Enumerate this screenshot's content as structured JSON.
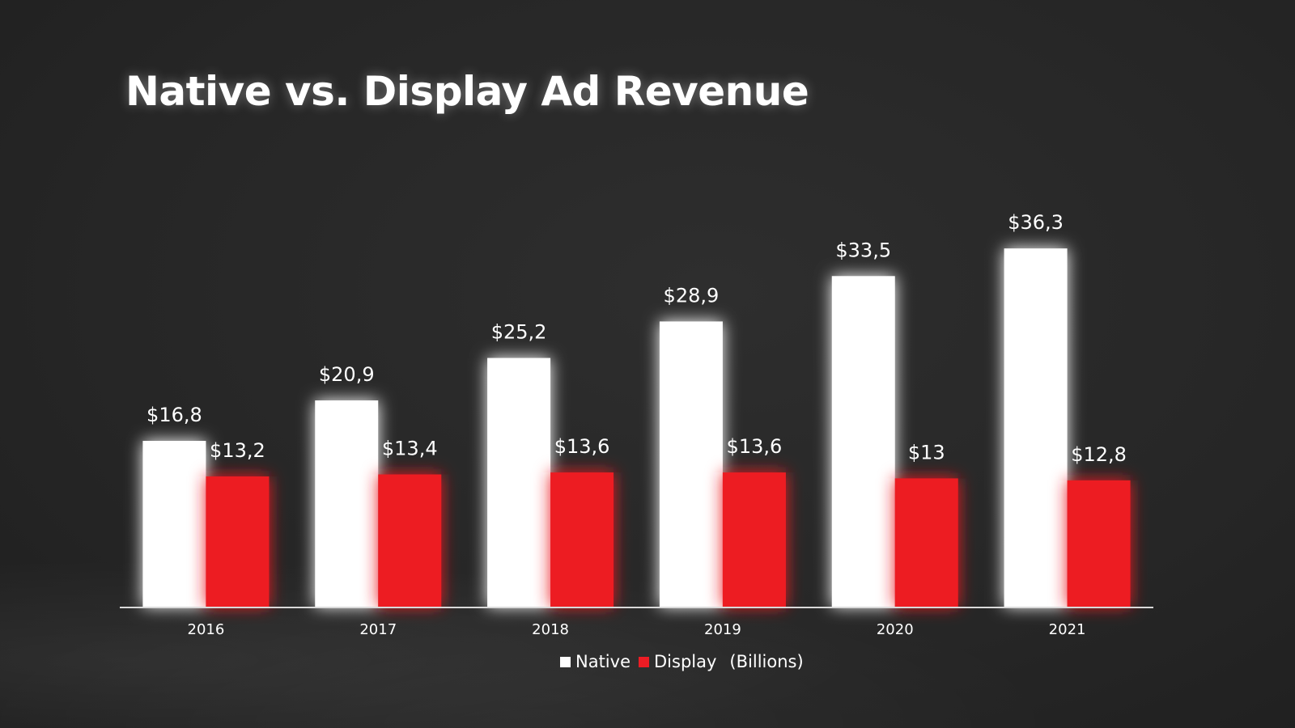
{
  "title": "Native vs. Display Ad Revenue",
  "colors": {
    "native": "#ffffff",
    "display": "#ED1C24",
    "axis": "#d9d9d9"
  },
  "legend": {
    "native": "Native",
    "display": "Display",
    "unit": "(Billions)"
  },
  "chart_data": {
    "type": "bar",
    "title": "Native vs. Display Ad Revenue",
    "xlabel": "",
    "ylabel": "",
    "unit": "Billions USD",
    "categories": [
      "2016",
      "2017",
      "2018",
      "2019",
      "2020",
      "2021"
    ],
    "series": [
      {
        "name": "Native",
        "values": [
          16.8,
          20.9,
          25.2,
          28.9,
          33.5,
          36.3
        ],
        "labels": [
          "$16,8",
          "$20,9",
          "$25,2",
          "$28,9",
          "$33,5",
          "$36,3"
        ]
      },
      {
        "name": "Display",
        "values": [
          13.2,
          13.4,
          13.6,
          13.6,
          13.0,
          12.8
        ],
        "labels": [
          "$13,2",
          "$13,4",
          "$13,6",
          "$13,6",
          "$13",
          "$12,8"
        ]
      }
    ],
    "ylim": [
      0,
      40
    ],
    "grid": false,
    "legend_position": "bottom"
  }
}
